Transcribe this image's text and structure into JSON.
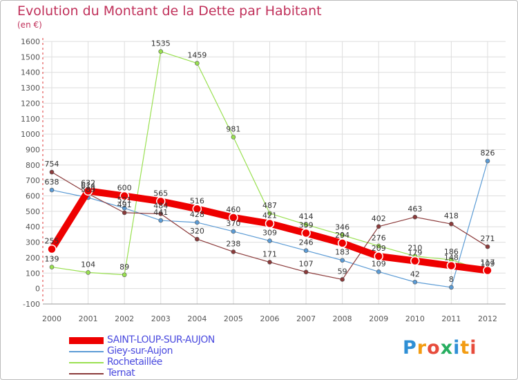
{
  "header": {
    "title": "Evolution du Montant de la Dette par Habitant",
    "subtitle": "(en €)"
  },
  "logo": {
    "letters": [
      "P",
      "r",
      "o",
      "x",
      "i",
      "t",
      "i"
    ],
    "colors": [
      "#2f8fd5",
      "#f39c12",
      "#e74c3c",
      "#27ae60",
      "#2f8fd5",
      "#f39c12",
      "#e74c3c"
    ]
  },
  "chart_data": {
    "type": "line",
    "title": "Evolution du Montant de la Dette par Habitant",
    "subtitle": "(en €)",
    "xlabel": "",
    "ylabel": "",
    "ylim": [
      -100,
      1600
    ],
    "yticks": [
      -100,
      0,
      100,
      200,
      300,
      400,
      500,
      600,
      700,
      800,
      900,
      1000,
      1100,
      1200,
      1300,
      1400,
      1500,
      1600
    ],
    "grid": true,
    "categories": [
      "2000",
      "2001",
      "2002",
      "2003",
      "2004",
      "2005",
      "2006",
      "2007",
      "2008",
      "2009",
      "2010",
      "2011",
      "2012"
    ],
    "series": [
      {
        "name": "SAINT-LOUP-SUR-AUJON",
        "color": "#ee0000",
        "values": [
          255,
          632,
          600,
          565,
          516,
          460,
          421,
          359,
          294,
          209,
          179,
          148,
          117
        ]
      },
      {
        "name": "Giey-sur-Aujon",
        "color": "#5b9bd5",
        "values": [
          638,
          589,
          521,
          441,
          428,
          370,
          309,
          246,
          183,
          109,
          42,
          8,
          826
        ]
      },
      {
        "name": "Rochetaillée",
        "color": "#99e050",
        "values": [
          139,
          104,
          89,
          1535,
          1459,
          981,
          487,
          414,
          346,
          276,
          210,
          186,
          109
        ]
      },
      {
        "name": "Ternat",
        "color": "#8b3a3a",
        "values": [
          754,
          614,
          491,
          484,
          320,
          238,
          171,
          107,
          59,
          402,
          463,
          418,
          271
        ]
      }
    ]
  }
}
